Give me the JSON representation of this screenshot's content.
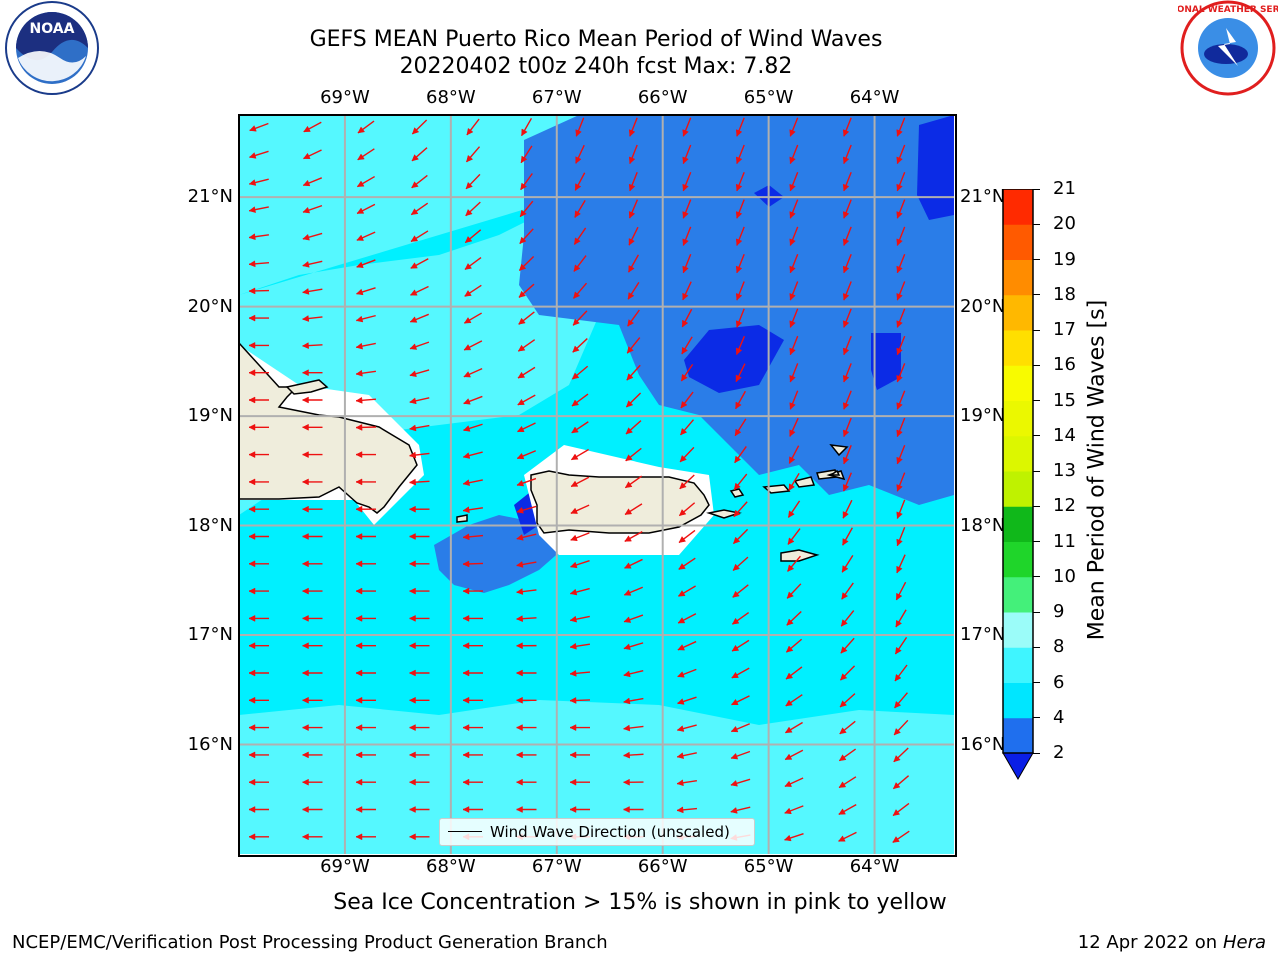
{
  "title_line1": "GEFS MEAN Puerto Rico Mean Period of Wind Waves",
  "title_line2": "20220402 t00z 240h fcst   Max: 7.82",
  "lon_ticks": [
    "69°W",
    "68°W",
    "67°W",
    "66°W",
    "65°W",
    "64°W"
  ],
  "lat_ticks": [
    "21°N",
    "20°N",
    "19°N",
    "18°N",
    "17°N",
    "16°N"
  ],
  "legend_label": "Wind Wave Direction (unscaled)",
  "colorbar": {
    "label": "Mean Period of Wind Waves [s]",
    "ticks": [
      "2",
      "4",
      "6",
      "8",
      "9",
      "10",
      "11",
      "12",
      "13",
      "14",
      "15",
      "16",
      "17",
      "18",
      "19",
      "20",
      "21"
    ],
    "colors": [
      "#1f6fee",
      "#00e6ff",
      "#3ff5ff",
      "#9bfcf9",
      "#44f07a",
      "#1fd52a",
      "#10b81a",
      "#bff200",
      "#dcf700",
      "#ebf800",
      "#f8fb00",
      "#ffdf00",
      "#ffb800",
      "#ff8c00",
      "#ff5a00",
      "#ff2a00"
    ],
    "extend_color": "#0a1ee6"
  },
  "footer_note": "Sea Ice Concentration > 15% is shown in pink to yellow",
  "credit": "NCEP/EMC/Verification Post Processing Product Generation Branch",
  "date_prefix": "12 Apr 2022 on ",
  "date_machine": "Hera",
  "logo_left": "NOAA",
  "logo_right": "NATIONAL WEATHER SERVICE",
  "map_colors": {
    "ocean_light": "#55f8ff",
    "ocean_cyan": "#00f0ff",
    "ocean_mid": "#2a7de8",
    "ocean_deep": "#0b2be6",
    "land": "#efeddc",
    "arrow": "#ee1111",
    "grid": "#b0b0b0"
  },
  "map_extent": {
    "lon_min": -70.0,
    "lon_max": -63.25,
    "lat_min": 15.0,
    "lat_max": 21.75
  }
}
